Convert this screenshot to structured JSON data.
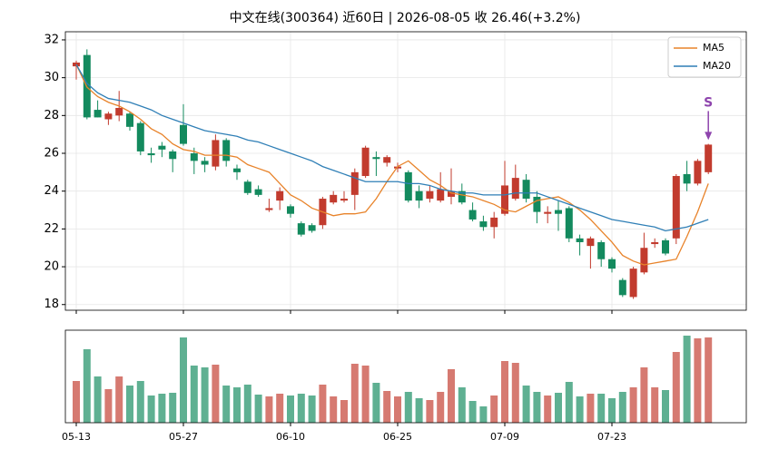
{
  "chart_data": {
    "type": "candlestick",
    "title": "中文在线(300364) 近60日  |  2026-08-05 收 26.46(+3.2%)",
    "categories": [
      "05-13",
      null,
      null,
      null,
      null,
      null,
      null,
      null,
      null,
      null,
      "05-27",
      null,
      null,
      null,
      null,
      null,
      null,
      null,
      null,
      null,
      "06-10",
      null,
      null,
      null,
      null,
      null,
      null,
      null,
      null,
      null,
      "06-25",
      null,
      null,
      null,
      null,
      null,
      null,
      null,
      null,
      null,
      "07-09",
      null,
      null,
      null,
      null,
      null,
      null,
      null,
      null,
      null,
      "07-23",
      null,
      null,
      null,
      null,
      null,
      null,
      null,
      null,
      null
    ],
    "open": [
      30.6,
      31.2,
      28.3,
      27.8,
      28.0,
      28.1,
      27.6,
      26.0,
      26.4,
      26.1,
      27.5,
      26.0,
      25.6,
      25.3,
      26.7,
      25.2,
      24.5,
      24.1,
      23.0,
      23.5,
      23.2,
      22.3,
      22.2,
      22.2,
      23.4,
      23.5,
      23.8,
      24.8,
      25.8,
      25.5,
      25.2,
      25.0,
      24.0,
      23.6,
      23.5,
      23.7,
      24.0,
      23.0,
      22.4,
      22.1,
      22.8,
      23.6,
      24.6,
      23.7,
      22.8,
      23.0,
      23.1,
      21.5,
      21.1,
      21.3,
      20.4,
      19.3,
      18.4,
      19.7,
      21.2,
      21.4,
      21.5,
      24.9,
      24.4,
      25.0
    ],
    "high": [
      30.9,
      31.5,
      28.8,
      28.2,
      29.3,
      28.2,
      27.7,
      26.3,
      26.6,
      26.2,
      28.6,
      26.3,
      25.8,
      27.0,
      26.8,
      25.4,
      24.6,
      24.3,
      23.6,
      24.2,
      23.3,
      22.4,
      22.3,
      23.7,
      24.0,
      24.0,
      25.2,
      26.4,
      26.1,
      25.9,
      25.5,
      25.1,
      24.3,
      24.3,
      25.0,
      25.2,
      24.4,
      23.4,
      22.7,
      22.9,
      25.6,
      25.4,
      24.9,
      24.0,
      23.2,
      23.5,
      23.2,
      21.7,
      21.6,
      21.4,
      20.5,
      19.4,
      20.0,
      21.8,
      21.5,
      21.5,
      24.9,
      25.6,
      25.7,
      26.5
    ],
    "low": [
      29.9,
      27.8,
      27.9,
      27.5,
      27.7,
      27.2,
      25.9,
      25.5,
      25.8,
      25.0,
      26.4,
      24.9,
      25.0,
      25.1,
      25.3,
      24.6,
      23.8,
      23.7,
      22.9,
      23.0,
      22.6,
      21.6,
      21.8,
      22.0,
      23.3,
      23.4,
      23.0,
      24.7,
      24.8,
      25.3,
      25.0,
      23.4,
      23.1,
      23.4,
      23.4,
      23.3,
      23.3,
      22.4,
      21.9,
      21.5,
      22.7,
      23.5,
      23.4,
      22.3,
      22.3,
      21.9,
      21.3,
      20.6,
      19.9,
      20.0,
      19.7,
      18.4,
      18.3,
      19.6,
      21.0,
      20.6,
      21.2,
      24.0,
      24.3,
      24.9
    ],
    "close": [
      30.8,
      27.9,
      27.9,
      28.1,
      28.4,
      27.4,
      26.1,
      25.9,
      26.2,
      25.7,
      26.5,
      25.6,
      25.4,
      26.7,
      25.6,
      25.0,
      23.9,
      23.8,
      23.1,
      24.0,
      22.8,
      21.7,
      21.9,
      23.6,
      23.8,
      23.6,
      25.0,
      26.3,
      25.7,
      25.8,
      25.3,
      23.5,
      23.5,
      24.0,
      24.1,
      24.0,
      23.4,
      22.5,
      22.1,
      22.6,
      24.3,
      24.7,
      23.6,
      22.9,
      22.9,
      22.8,
      21.5,
      21.3,
      21.5,
      20.4,
      19.9,
      18.5,
      19.9,
      21.0,
      21.3,
      20.7,
      24.8,
      24.4,
      25.6,
      26.46
    ],
    "series": [
      {
        "name": "MA5",
        "color": "#e8832a",
        "values": [
          30.7,
          29.5,
          29.0,
          28.7,
          28.5,
          28.2,
          27.8,
          27.3,
          27.0,
          26.5,
          26.2,
          26.1,
          25.9,
          25.9,
          25.9,
          25.8,
          25.4,
          25.2,
          25.0,
          24.4,
          23.8,
          23.5,
          23.1,
          22.9,
          22.7,
          22.8,
          22.8,
          22.9,
          23.6,
          24.5,
          25.3,
          25.6,
          25.1,
          24.6,
          24.3,
          23.9,
          23.8,
          23.7,
          23.5,
          23.3,
          23.0,
          22.9,
          23.2,
          23.5,
          23.6,
          23.7,
          23.4,
          23.0,
          22.5,
          21.9,
          21.3,
          20.6,
          20.3,
          20.1,
          20.2,
          20.3,
          20.4,
          21.6,
          22.9,
          24.4
        ]
      },
      {
        "name": "MA20",
        "color": "#2f7fb6",
        "values": [
          30.7,
          29.7,
          29.2,
          28.9,
          28.8,
          28.7,
          28.5,
          28.3,
          28.0,
          27.8,
          27.6,
          27.4,
          27.2,
          27.1,
          27.0,
          26.9,
          26.7,
          26.6,
          26.4,
          26.2,
          26.0,
          25.8,
          25.6,
          25.3,
          25.1,
          24.9,
          24.7,
          24.5,
          24.5,
          24.5,
          24.5,
          24.4,
          24.4,
          24.3,
          24.1,
          24.0,
          23.9,
          23.9,
          23.8,
          23.8,
          23.8,
          23.9,
          23.9,
          23.9,
          23.7,
          23.5,
          23.3,
          23.1,
          22.9,
          22.7,
          22.5,
          22.4,
          22.3,
          22.2,
          22.1,
          21.9,
          22.0,
          22.1,
          22.3,
          22.5
        ]
      }
    ],
    "volume": [
      46,
      81,
      51,
      37,
      51,
      41,
      46,
      30,
      32,
      33,
      94,
      63,
      61,
      64,
      41,
      39,
      42,
      31,
      29,
      32,
      30,
      32,
      30,
      42,
      29,
      25,
      65,
      63,
      44,
      35,
      29,
      34,
      27,
      25,
      34,
      59,
      39,
      24,
      18,
      30,
      68,
      66,
      41,
      34,
      30,
      33,
      45,
      29,
      32,
      32,
      27,
      34,
      39,
      61,
      39,
      36,
      78,
      96,
      93,
      94
    ],
    "volume_ylim": [
      0,
      102
    ],
    "ylim": [
      17.7,
      32.43
    ],
    "yticks": [
      18,
      20,
      22,
      24,
      26,
      28,
      30,
      32
    ],
    "grid": true,
    "legend": "upper right",
    "up_color": "#c23b2e",
    "down_color": "#138a5e",
    "annotations": [
      {
        "text": "S",
        "index": 59,
        "value": 26.7,
        "color": "#8e44ad"
      }
    ]
  }
}
